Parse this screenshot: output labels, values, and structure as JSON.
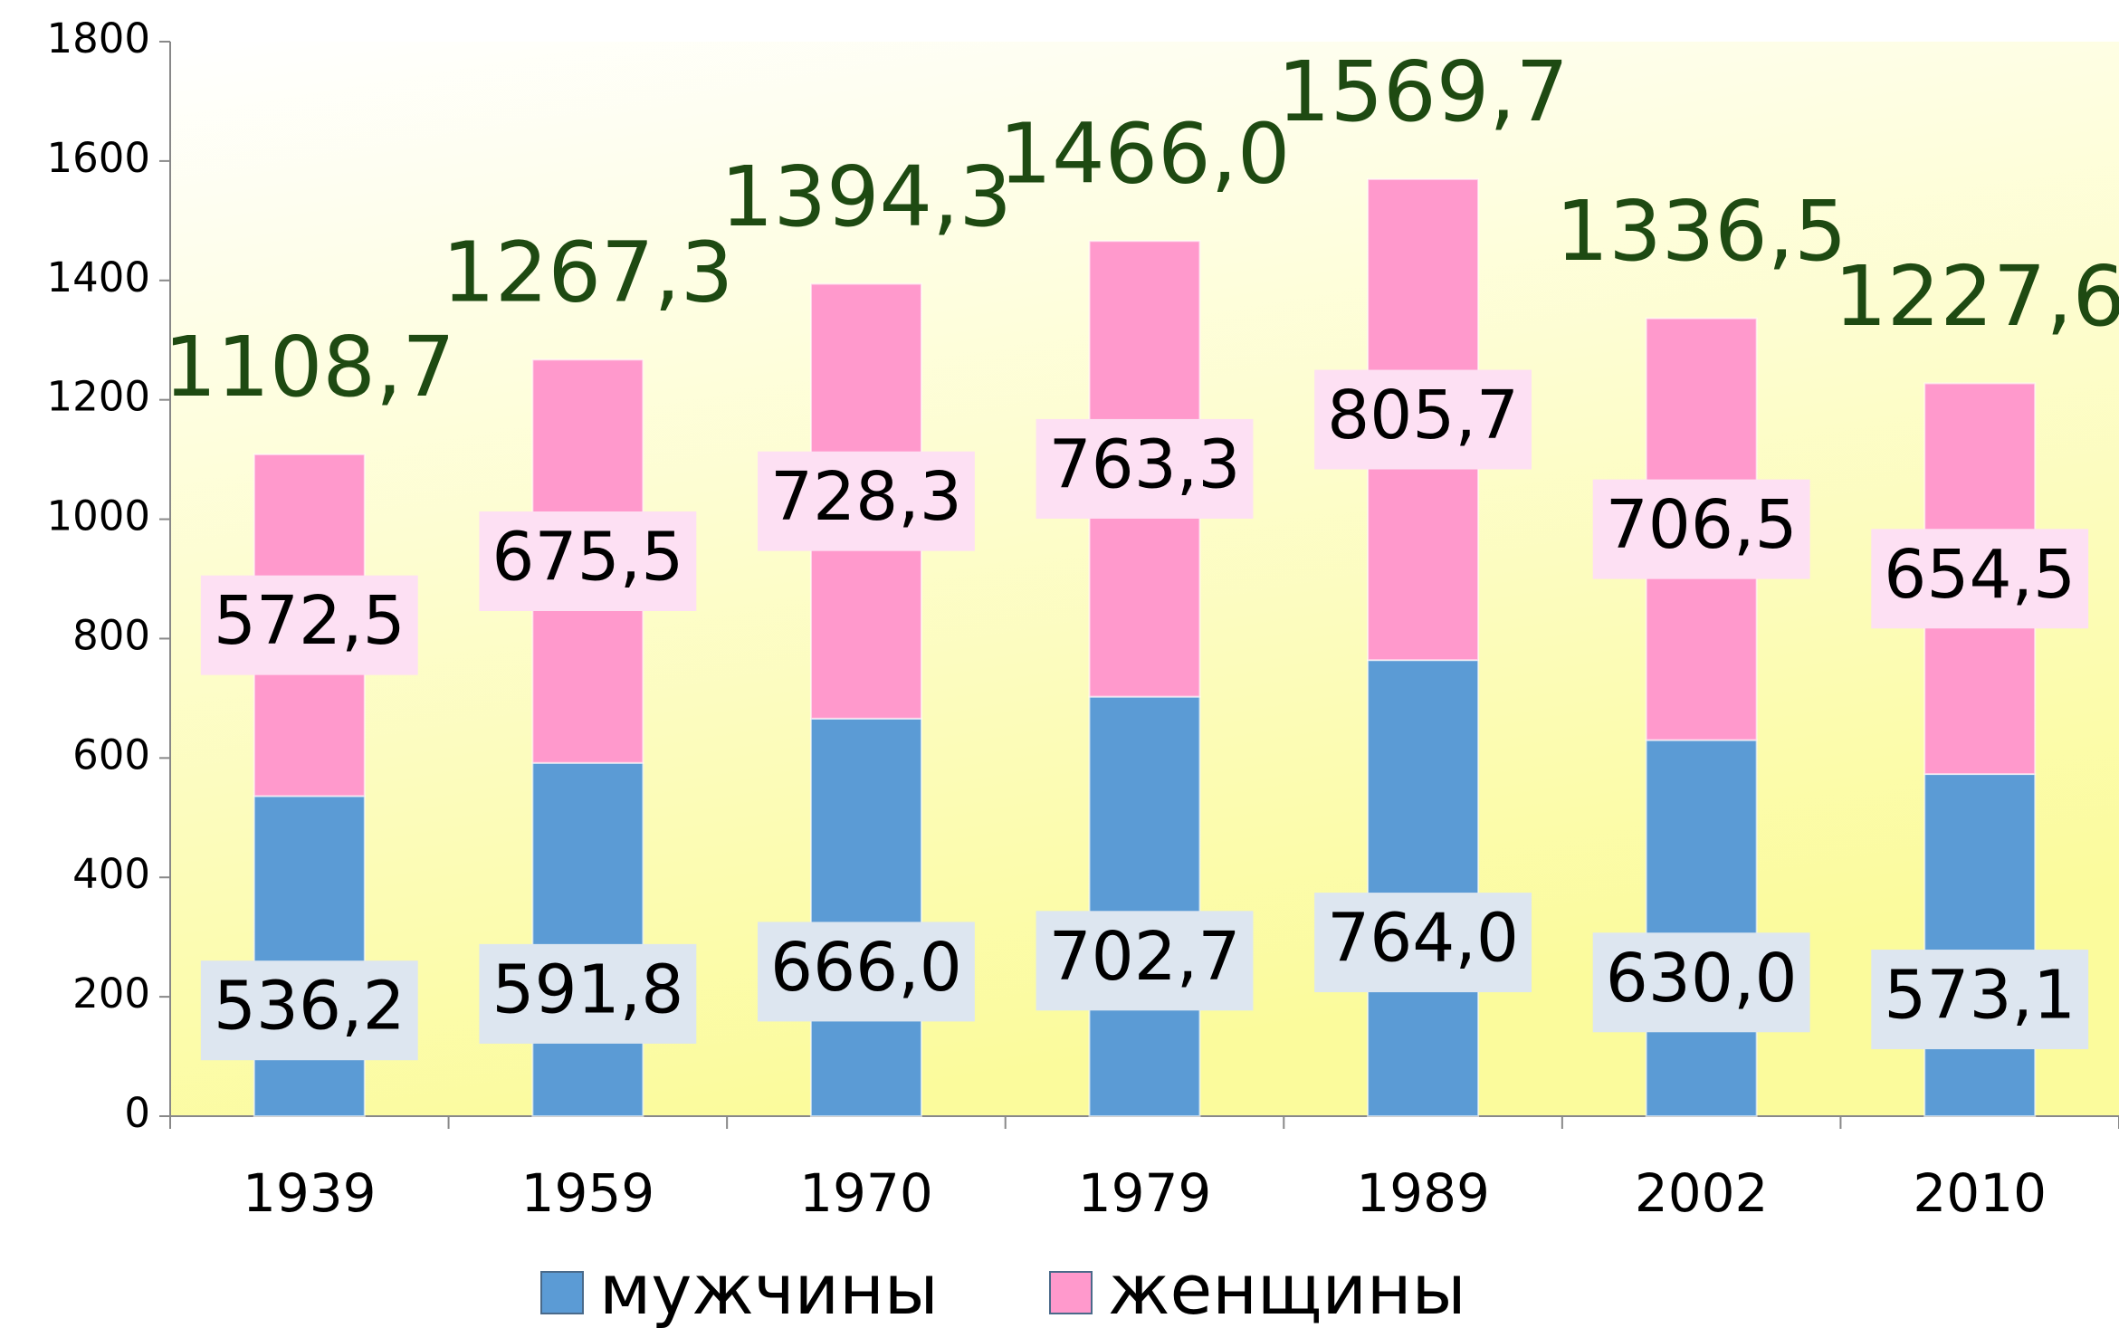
{
  "chart_data": {
    "type": "stacked_bar",
    "categories": [
      "1939",
      "1959",
      "1970",
      "1979",
      "1989",
      "2002",
      "2010"
    ],
    "series": [
      {
        "name": "мужчины",
        "color": "#5b9bd5",
        "label_bg": "#dde6f0",
        "values": [
          536.2,
          591.8,
          666.0,
          702.7,
          764.0,
          630.0,
          573.1
        ],
        "value_labels": [
          "536,2",
          "591,8",
          "666,0",
          "702,7",
          "764,0",
          "630,0",
          "573,1"
        ]
      },
      {
        "name": "женщины",
        "color": "#ff99cc",
        "label_bg": "#fde0f3",
        "values": [
          572.5,
          675.5,
          728.3,
          763.3,
          805.7,
          706.5,
          654.5
        ],
        "value_labels": [
          "572,5",
          "675,5",
          "728,3",
          "763,3",
          "805,7",
          "706,5",
          "654,5"
        ]
      }
    ],
    "totals": [
      1108.7,
      1267.3,
      1394.3,
      1466.0,
      1569.7,
      1336.5,
      1227.6
    ],
    "total_labels": [
      "1108,7",
      "1267,3",
      "1394,3",
      "1466,0",
      "1569,7",
      "1336,5",
      "1227,6"
    ],
    "ylim": [
      0,
      1800
    ],
    "yticks": [
      0,
      200,
      400,
      600,
      800,
      1000,
      1200,
      1400,
      1600,
      1800
    ],
    "legend": "bottom"
  }
}
